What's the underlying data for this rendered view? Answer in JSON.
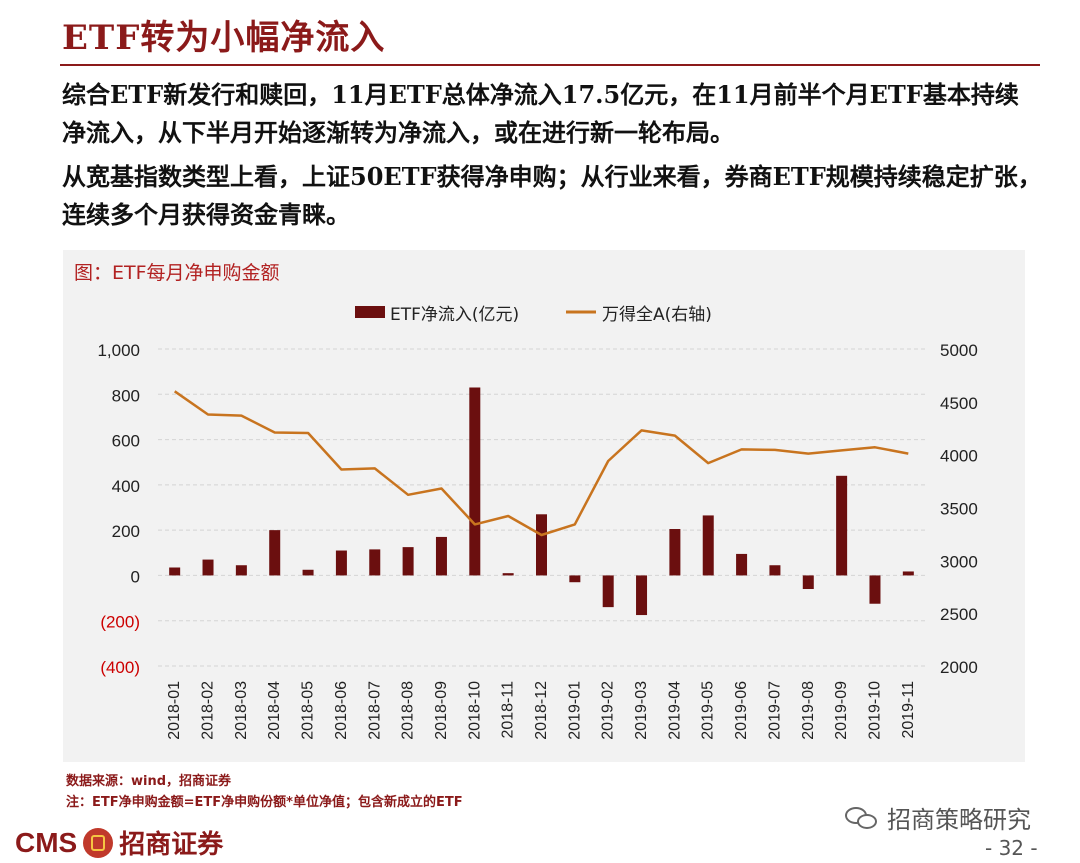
{
  "slide": {
    "title": "ETF转为小幅净流入",
    "paragraph1": "综合ETF新发行和赎回，11月ETF总体净流入17.5亿元，在11月前半个月ETF基本持续净流入，从下半月开始逐渐转为净流入，或在进行新一轮布局。",
    "paragraph2": "从宽基指数类型上看，上证50ETF获得净申购；从行业来看，券商ETF规模持续稳定扩张，连续多个月获得资金青睐。"
  },
  "chart_data": {
    "type": "bar+line",
    "title": "图：ETF每月净申购金额",
    "categories": [
      "2018-01",
      "2018-02",
      "2018-03",
      "2018-04",
      "2018-05",
      "2018-06",
      "2018-07",
      "2018-08",
      "2018-09",
      "2018-10",
      "2018-11",
      "2018-12",
      "2019-01",
      "2019-02",
      "2019-03",
      "2019-04",
      "2019-05",
      "2019-06",
      "2019-07",
      "2019-08",
      "2019-09",
      "2019-10",
      "2019-11"
    ],
    "series": [
      {
        "name": "ETF净流入(亿元)",
        "type": "bar",
        "axis": "left",
        "color": "#6b0f0f",
        "values": [
          35,
          70,
          45,
          200,
          25,
          110,
          115,
          125,
          170,
          830,
          10,
          270,
          -30,
          -140,
          -175,
          205,
          265,
          95,
          45,
          -60,
          440,
          -125,
          17.5
        ]
      },
      {
        "name": "万得全A(右轴)",
        "type": "line",
        "axis": "right",
        "color": "#c8741f",
        "values": [
          4600,
          4380,
          4370,
          4210,
          4205,
          3860,
          3870,
          3620,
          3680,
          3340,
          3420,
          3240,
          3340,
          3940,
          4230,
          4180,
          3920,
          4050,
          4045,
          4010,
          4040,
          4070,
          4010
        ]
      }
    ],
    "y_left": {
      "min": -400,
      "max": 1000,
      "ticks": [
        1000,
        800,
        600,
        400,
        200,
        0,
        -200,
        -400
      ],
      "tick_labels": [
        "1,000",
        "800",
        "600",
        "400",
        "200",
        "0",
        "(200)",
        "(400)"
      ]
    },
    "y_right": {
      "min": 2000,
      "max": 5000,
      "ticks": [
        5000,
        4500,
        4000,
        3500,
        3000,
        2500,
        2000
      ],
      "tick_labels": [
        "5000",
        "4500",
        "4000",
        "3500",
        "3000",
        "2500",
        "2000"
      ]
    },
    "legend_position": "top-center",
    "grid": "horizontal-dashed"
  },
  "footnotes": {
    "source": "数据来源：wind，招商证券",
    "note": "注：ETF净申购金额=ETF净申购份额*单位净值；包含新成立的ETF"
  },
  "branding": {
    "logo_text_en": "CMS",
    "logo_text_cn": "招商证券",
    "wechat_account": "招商策略研究",
    "page_number": "- 32 -"
  }
}
